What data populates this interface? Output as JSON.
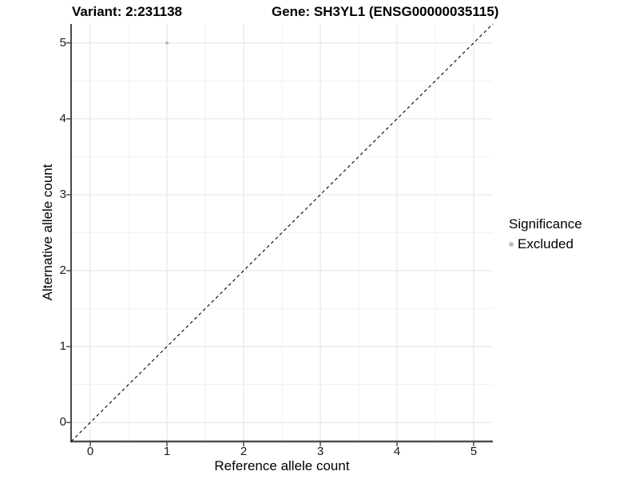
{
  "titles": {
    "variant": "Variant: 2:231138",
    "gene": "Gene: SH3YL1 (ENSG00000035115)"
  },
  "chart_data": {
    "type": "scatter",
    "title_left": "Variant: 2:231138",
    "title_right": "Gene: SH3YL1 (ENSG00000035115)",
    "xlabel": "Reference allele count",
    "ylabel": "Alternative allele count",
    "xlim": [
      -0.25,
      5.25
    ],
    "ylim": [
      -0.25,
      5.25
    ],
    "x_ticks": [
      0,
      1,
      2,
      3,
      4,
      5
    ],
    "y_ticks": [
      0,
      1,
      2,
      3,
      4,
      5
    ],
    "minor_grid_step": 0.5,
    "grid": true,
    "series": [
      {
        "name": "Excluded",
        "color": "#bebebe",
        "marker": "circle",
        "points": [
          {
            "x": 1,
            "y": 5
          }
        ]
      }
    ],
    "reference_line": {
      "kind": "identity",
      "style": "dashed",
      "color": "#000000",
      "from": [
        -0.25,
        -0.25
      ],
      "to": [
        5.25,
        5.25
      ]
    },
    "legend": {
      "title": "Significance",
      "position": "right",
      "items": [
        {
          "label": "Excluded",
          "color": "#bebebe",
          "marker": "circle"
        }
      ]
    },
    "colors": {
      "background": "#ffffff",
      "major_grid": "#e3e3e3",
      "minor_grid": "#f1f1f1",
      "axis_line_left": "#1a1a1a",
      "axis_line_bottom": "#4d4d4d",
      "tick_mark": "#222222",
      "tick_text": "#1a1a1a",
      "point": "#bebebe"
    }
  }
}
